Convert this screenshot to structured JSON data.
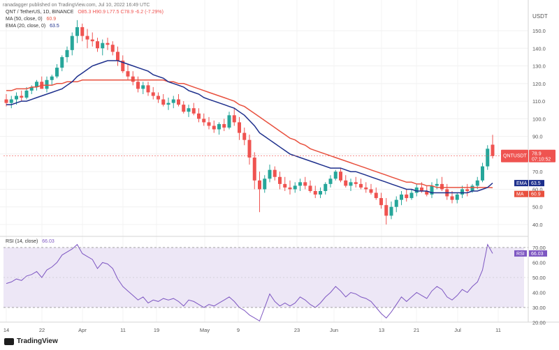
{
  "header": {
    "publisher": "ranadagger published on TradingView.com, Jul 10, 2022 16:49 UTC"
  },
  "legend": {
    "symbol": "QNT / TetherUS, 1D, BINANCE",
    "ohlc": "O85.3 H90.9 L77.5 C78.9 -6.2 (-7.29%)",
    "ma_label": "MA (50, close, 0)",
    "ma_value": "60.9",
    "ema_label": "EMA (20, close, 0)",
    "ema_value": "63.5",
    "rsi_label": "RSI (14, close)",
    "rsi_value": "66.03"
  },
  "brand": "TradingView",
  "colors": {
    "up": "#26a69a",
    "down": "#ef5350",
    "ma": "#e8503e",
    "ema": "#1d2f8c",
    "rsi": "#7e57c2",
    "rsi_band": "#ede7f6",
    "price_label_bg": "#ef5350"
  },
  "tags": {
    "price": {
      "label": "QNTUSDT",
      "value": "78.9",
      "timer": "07:10:52"
    },
    "ema": {
      "label": "EMA",
      "value": "63.5"
    },
    "ma": {
      "label": "MA",
      "value": "60.9"
    },
    "rsi": {
      "label": "RSI",
      "value": "66.03"
    }
  },
  "chart_data": [
    {
      "type": "candlestick",
      "title": "QNT / TetherUS, 1D, BINANCE",
      "currency": "USDT",
      "ylim": [
        38,
        160
      ],
      "yticks": [
        40.0,
        50.0,
        60.0,
        70.0,
        80.0,
        90.0,
        100.0,
        110.0,
        120.0,
        130.0,
        140.0,
        150.0
      ],
      "xticks": [
        "14",
        "22",
        "Apr",
        "11",
        "19",
        "May",
        "9",
        "23",
        "Jun",
        "13",
        "21",
        "Jul",
        "11"
      ],
      "grid": true,
      "candles": [
        [
          111,
          114,
          107,
          109
        ],
        [
          109,
          113,
          106,
          111
        ],
        [
          111,
          115,
          108,
          113
        ],
        [
          113,
          116,
          110,
          112
        ],
        [
          112,
          118,
          111,
          116
        ],
        [
          116,
          119,
          114,
          118
        ],
        [
          118,
          122,
          116,
          121
        ],
        [
          121,
          124,
          118,
          117
        ],
        [
          117,
          124,
          115,
          122
        ],
        [
          122,
          125,
          119,
          124
        ],
        [
          124,
          131,
          123,
          129
        ],
        [
          129,
          136,
          127,
          135
        ],
        [
          135,
          141,
          132,
          139
        ],
        [
          139,
          149,
          136,
          147
        ],
        [
          147,
          156,
          143,
          152
        ],
        [
          152,
          154,
          144,
          147
        ],
        [
          147,
          151,
          140,
          145
        ],
        [
          145,
          149,
          141,
          144
        ],
        [
          144,
          146,
          138,
          140
        ],
        [
          140,
          145,
          136,
          143
        ],
        [
          143,
          146,
          139,
          142
        ],
        [
          142,
          144,
          136,
          138
        ],
        [
          138,
          141,
          130,
          133
        ],
        [
          133,
          136,
          126,
          127
        ],
        [
          127,
          131,
          122,
          124
        ],
        [
          124,
          127,
          119,
          121
        ],
        [
          121,
          124,
          115,
          117
        ],
        [
          117,
          121,
          114,
          119
        ],
        [
          119,
          121,
          113,
          115
        ],
        [
          115,
          118,
          111,
          113
        ],
        [
          113,
          115,
          109,
          111
        ],
        [
          111,
          114,
          107,
          108
        ],
        [
          108,
          112,
          105,
          109
        ],
        [
          109,
          113,
          106,
          111
        ],
        [
          111,
          114,
          107,
          108
        ],
        [
          108,
          110,
          103,
          104
        ],
        [
          104,
          108,
          101,
          106
        ],
        [
          106,
          109,
          102,
          103
        ],
        [
          103,
          106,
          98,
          100
        ],
        [
          100,
          103,
          96,
          98
        ],
        [
          98,
          101,
          94,
          96
        ],
        [
          96,
          99,
          92,
          94
        ],
        [
          94,
          98,
          91,
          97
        ],
        [
          97,
          100,
          93,
          95
        ],
        [
          95,
          104,
          94,
          102
        ],
        [
          102,
          106,
          96,
          98
        ],
        [
          98,
          101,
          88,
          92
        ],
        [
          92,
          95,
          85,
          88
        ],
        [
          88,
          91,
          74,
          78
        ],
        [
          78,
          81,
          60,
          65
        ],
        [
          65,
          70,
          47,
          60
        ],
        [
          60,
          68,
          58,
          66
        ],
        [
          66,
          74,
          64,
          71
        ],
        [
          71,
          73,
          65,
          67
        ],
        [
          67,
          70,
          60,
          63
        ],
        [
          63,
          67,
          59,
          61
        ],
        [
          61,
          65,
          57,
          60
        ],
        [
          60,
          64,
          58,
          62
        ],
        [
          62,
          66,
          59,
          64
        ],
        [
          64,
          67,
          60,
          62
        ],
        [
          62,
          65,
          58,
          59
        ],
        [
          59,
          62,
          55,
          57
        ],
        [
          57,
          61,
          55,
          59
        ],
        [
          59,
          64,
          57,
          63
        ],
        [
          63,
          68,
          61,
          66
        ],
        [
          66,
          71,
          65,
          70
        ],
        [
          70,
          72,
          64,
          65
        ],
        [
          65,
          68,
          61,
          62
        ],
        [
          62,
          66,
          59,
          64
        ],
        [
          64,
          67,
          61,
          63
        ],
        [
          63,
          66,
          60,
          61
        ],
        [
          61,
          64,
          58,
          60
        ],
        [
          60,
          63,
          57,
          58
        ],
        [
          58,
          61,
          54,
          55
        ],
        [
          55,
          58,
          49,
          51
        ],
        [
          51,
          55,
          40,
          45
        ],
        [
          45,
          53,
          43,
          50
        ],
        [
          50,
          56,
          47,
          54
        ],
        [
          54,
          59,
          51,
          57
        ],
        [
          57,
          60,
          53,
          55
        ],
        [
          55,
          60,
          54,
          58
        ],
        [
          58,
          63,
          56,
          61
        ],
        [
          61,
          64,
          58,
          59
        ],
        [
          59,
          62,
          56,
          57
        ],
        [
          57,
          64,
          55,
          62
        ],
        [
          62,
          66,
          60,
          63
        ],
        [
          63,
          67,
          59,
          60
        ],
        [
          60,
          63,
          54,
          56
        ],
        [
          56,
          59,
          52,
          54
        ],
        [
          54,
          58,
          52,
          57
        ],
        [
          57,
          62,
          55,
          60
        ],
        [
          60,
          63,
          56,
          59
        ],
        [
          59,
          63,
          58,
          62
        ],
        [
          62,
          67,
          60,
          65
        ],
        [
          65,
          75,
          64,
          73
        ],
        [
          73,
          85,
          71,
          83
        ],
        [
          85.3,
          90.9,
          77.5,
          78.9
        ]
      ],
      "series": [
        {
          "name": "EMA (20, close, 0)",
          "values": [
            108,
            108,
            109,
            110,
            110,
            111,
            112,
            113,
            114,
            115,
            116,
            117,
            119,
            121,
            124,
            126,
            128,
            130,
            131,
            132,
            133,
            133,
            133,
            132,
            131,
            130,
            129,
            128,
            127,
            125,
            124,
            123,
            121,
            120,
            119,
            118,
            116,
            115,
            114,
            112,
            111,
            110,
            109,
            108,
            107,
            106,
            104,
            102,
            99,
            96,
            92,
            90,
            88,
            86,
            84,
            82,
            80,
            79,
            78,
            77,
            76,
            75,
            74,
            73,
            72,
            72,
            72,
            71,
            70,
            70,
            69,
            68,
            67,
            66,
            65,
            64,
            63,
            62,
            61,
            60,
            60,
            59,
            59,
            59,
            58,
            58,
            58,
            58,
            58,
            58,
            58,
            58,
            59,
            59,
            60,
            61,
            63.5
          ]
        },
        {
          "name": "MA (50, close, 0)",
          "values": [
            116,
            116,
            117,
            117,
            117,
            118,
            118,
            119,
            119,
            119,
            120,
            120,
            121,
            121,
            121,
            122,
            122,
            122,
            122,
            122,
            122,
            122,
            122,
            122,
            122,
            122,
            122,
            122,
            122,
            122,
            122,
            122,
            121,
            121,
            120,
            120,
            119,
            118,
            117,
            116,
            115,
            114,
            113,
            112,
            111,
            110,
            108,
            107,
            105,
            103,
            101,
            99,
            97,
            95,
            93,
            91,
            89,
            88,
            86,
            85,
            83,
            82,
            81,
            80,
            79,
            78,
            77,
            76,
            75,
            74,
            73,
            72,
            71,
            70,
            69,
            68,
            67,
            66,
            65,
            64,
            64,
            63,
            63,
            62,
            62,
            61,
            61,
            61,
            61,
            61,
            61,
            61,
            61,
            61,
            61,
            61,
            60.9
          ]
        }
      ]
    },
    {
      "type": "line",
      "title": "RSI (14, close)",
      "ylim": [
        20,
        80
      ],
      "yticks": [
        20.0,
        30.0,
        40.0,
        50.0,
        60.0,
        70.0
      ],
      "band": [
        30,
        70
      ],
      "series": [
        {
          "name": "RSI (14, close)",
          "values": [
            46,
            47,
            49,
            48,
            51,
            52,
            54,
            50,
            55,
            57,
            60,
            65,
            67,
            69,
            72,
            66,
            64,
            62,
            56,
            60,
            59,
            56,
            49,
            44,
            41,
            38,
            35,
            37,
            33,
            35,
            34,
            36,
            35,
            36,
            34,
            31,
            35,
            34,
            32,
            30,
            32,
            31,
            33,
            35,
            37,
            34,
            30,
            28,
            25,
            23,
            21,
            30,
            39,
            34,
            31,
            33,
            31,
            33,
            37,
            35,
            32,
            30,
            33,
            37,
            40,
            44,
            41,
            37,
            40,
            39,
            37,
            36,
            34,
            30,
            26,
            23,
            27,
            32,
            37,
            34,
            37,
            40,
            38,
            36,
            41,
            44,
            42,
            37,
            35,
            38,
            42,
            40,
            44,
            47,
            55,
            72,
            66.03
          ]
        }
      ]
    }
  ]
}
